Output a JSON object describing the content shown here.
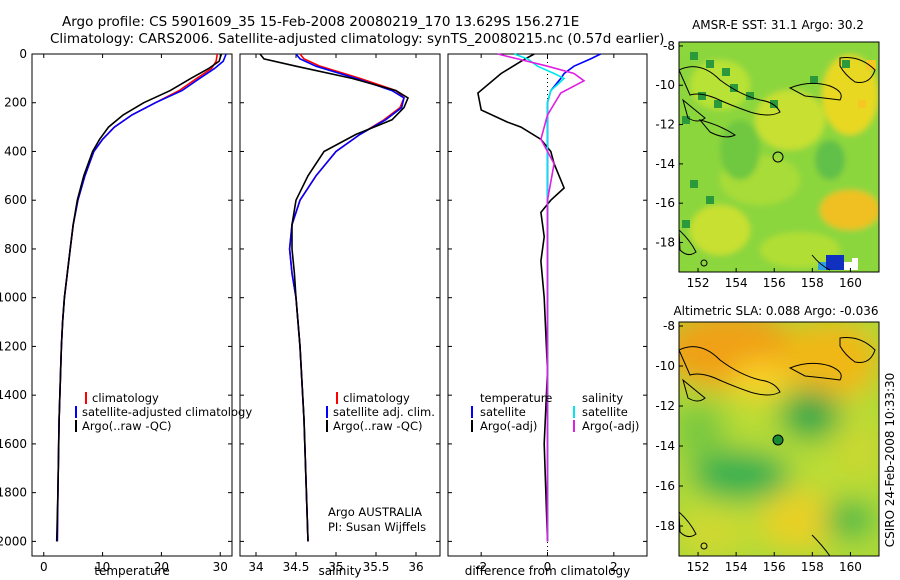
{
  "header": {
    "line1": "Argo profile: CS 5901609_35 15-Feb-2008 20080219_170 13.629S 156.271E",
    "line2": "Climatology: CARS2006. Satellite-adjusted climatology: synTS_20080215.nc (0.57d earlier)"
  },
  "side_label": "CSIRO 24-Feb-2008 10:33:30",
  "colors": {
    "climatology": "#ff0000",
    "satellite": "#0000ff",
    "argo": "#000000",
    "salinity_satellite": "#00e5ee",
    "salinity_argo": "#e020e0"
  },
  "chart_data": [
    {
      "type": "line",
      "id": "temperature",
      "xlabel": "temperature",
      "ylabel": "",
      "xlim": [
        -2,
        32
      ],
      "ylim": [
        2060,
        0
      ],
      "xticks": [
        0,
        10,
        20,
        30
      ],
      "yticks": [
        0,
        200,
        400,
        600,
        800,
        1000,
        1200,
        1400,
        1600,
        1800,
        2000
      ],
      "legend": [
        "climatology",
        "satellite-adjusted climatology",
        "Argo(..raw -QC)"
      ],
      "series": [
        {
          "name": "climatology",
          "color": "#ff0000",
          "x": [
            29.5,
            29.3,
            28.5,
            26,
            23,
            19,
            15,
            12,
            10,
            8.5,
            7,
            5.8,
            5,
            4.5,
            4,
            3.5,
            3.2,
            3,
            2.6,
            2.4,
            2.3
          ],
          "y": [
            0,
            30,
            60,
            100,
            150,
            200,
            250,
            300,
            350,
            400,
            500,
            600,
            700,
            800,
            900,
            1000,
            1100,
            1200,
            1500,
            1800,
            2000
          ]
        },
        {
          "name": "satellite-adjusted climatology",
          "color": "#0000ff",
          "x": [
            31,
            30.5,
            29,
            26.5,
            23.5,
            19,
            15,
            12,
            10,
            8.5,
            7,
            5.8,
            5,
            4.5,
            4,
            3.5,
            3.2,
            3,
            2.6,
            2.4,
            2.3
          ],
          "y": [
            0,
            30,
            60,
            100,
            150,
            200,
            250,
            300,
            350,
            400,
            500,
            600,
            700,
            800,
            900,
            1000,
            1100,
            1200,
            1500,
            1800,
            2000
          ]
        },
        {
          "name": "Argo(..raw -QC)",
          "color": "#000000",
          "x": [
            30.2,
            29.8,
            28,
            25,
            21.5,
            17,
            13.5,
            11,
            9.5,
            8.3,
            6.8,
            5.7,
            5,
            4.5,
            4,
            3.5,
            3.2,
            3,
            2.6,
            2.4,
            2.2
          ],
          "y": [
            0,
            30,
            60,
            100,
            150,
            200,
            250,
            300,
            350,
            400,
            500,
            600,
            700,
            800,
            900,
            1000,
            1100,
            1200,
            1500,
            1800,
            2000
          ]
        }
      ]
    },
    {
      "type": "line",
      "id": "salinity",
      "xlabel": "salinity",
      "xlim": [
        33.8,
        36.3
      ],
      "ylim": [
        2060,
        0
      ],
      "xticks": [
        34,
        34.5,
        35,
        35.5,
        36
      ],
      "legend": [
        "climatology",
        "satellite adj. clim.",
        "Argo(..raw -QC)"
      ],
      "annotation": [
        "Argo AUSTRALIA",
        "PI: Susan Wijffels"
      ],
      "series": [
        {
          "name": "climatology",
          "color": "#ff0000",
          "x": [
            34.55,
            34.6,
            34.8,
            35.3,
            35.75,
            35.85,
            35.8,
            35.6,
            35.3,
            35.0,
            34.75,
            34.55,
            34.45,
            34.42,
            34.45,
            34.5,
            34.55,
            34.6,
            34.63,
            34.65
          ],
          "y": [
            0,
            20,
            50,
            100,
            150,
            180,
            220,
            270,
            330,
            400,
            500,
            600,
            700,
            800,
            900,
            1000,
            1200,
            1500,
            1800,
            2000
          ]
        },
        {
          "name": "satellite adj. clim.",
          "color": "#0000ff",
          "x": [
            34.5,
            34.55,
            34.75,
            35.25,
            35.7,
            35.85,
            35.82,
            35.62,
            35.3,
            35.0,
            34.75,
            34.55,
            34.45,
            34.42,
            34.45,
            34.5,
            34.55,
            34.6,
            34.63,
            34.65
          ],
          "y": [
            0,
            20,
            50,
            100,
            150,
            180,
            220,
            270,
            330,
            400,
            500,
            600,
            700,
            800,
            900,
            1000,
            1200,
            1500,
            1800,
            2000
          ]
        },
        {
          "name": "Argo(..raw -QC)",
          "color": "#000000",
          "x": [
            34.05,
            34.1,
            34.5,
            35.2,
            35.75,
            35.9,
            35.85,
            35.7,
            35.25,
            34.85,
            34.65,
            34.5,
            34.45,
            34.45,
            34.48,
            34.5,
            34.55,
            34.6,
            34.63,
            34.65
          ],
          "y": [
            0,
            20,
            50,
            100,
            150,
            180,
            220,
            270,
            330,
            400,
            500,
            600,
            700,
            800,
            900,
            1000,
            1200,
            1500,
            1800,
            2000
          ]
        }
      ]
    },
    {
      "type": "line",
      "id": "difference",
      "xlabel": "difference from climatology",
      "xlim": [
        -3,
        3
      ],
      "ylim": [
        2060,
        0
      ],
      "xticks": [
        -2,
        0,
        2
      ],
      "legend": {
        "temperature": [
          "temperature",
          "satellite",
          "Argo(-adj)"
        ],
        "salinity": [
          "salinity",
          "satellite",
          "Argo(-adj)"
        ]
      },
      "series": [
        {
          "name": "temperature satellite",
          "color": "#0000ff",
          "x": [
            1.6,
            1.3,
            0.8,
            0.5,
            0.4,
            0.1,
            0,
            0,
            0,
            0,
            0,
            0,
            0,
            0
          ],
          "y": [
            0,
            20,
            50,
            80,
            100,
            150,
            200,
            300,
            500,
            700,
            900,
            1200,
            1600,
            2000
          ]
        },
        {
          "name": "temperature Argo(-adj)",
          "color": "#000000",
          "x": [
            -0.4,
            -0.8,
            -1.4,
            -2.1,
            -2.0,
            -1.2,
            -0.8,
            -0.2,
            0.1,
            0.2,
            0.5,
            0.1,
            -0.2,
            -0.1,
            -0.2,
            -0.1,
            0,
            -0.1,
            0
          ],
          "y": [
            0,
            30,
            80,
            160,
            230,
            280,
            300,
            350,
            400,
            450,
            550,
            600,
            650,
            750,
            850,
            1000,
            1300,
            1600,
            2000
          ]
        },
        {
          "name": "salinity satellite",
          "color": "#00e5ee",
          "x": [
            -1.0,
            -0.6,
            -0.3,
            0.2,
            0.5,
            0.1,
            0,
            0,
            0,
            0,
            0,
            0,
            0
          ],
          "y": [
            0,
            20,
            50,
            80,
            100,
            150,
            200,
            300,
            500,
            700,
            1000,
            1500,
            2000
          ]
        },
        {
          "name": "salinity Argo(-adj)",
          "color": "#e020e0",
          "x": [
            -1.5,
            -0.9,
            0,
            0.8,
            1.1,
            0.4,
            0,
            -0.2,
            0.2,
            0,
            0,
            0,
            0
          ],
          "y": [
            0,
            20,
            50,
            80,
            110,
            160,
            250,
            350,
            450,
            600,
            800,
            1200,
            2000
          ]
        }
      ]
    },
    {
      "type": "heatmap",
      "id": "sst-map",
      "title": "AMSR-E SST: 31.1 Argo: 30.2",
      "xlim": [
        151,
        161.5
      ],
      "ylim": [
        -19.5,
        -7.8
      ],
      "xticks": [
        152,
        154,
        156,
        158,
        160
      ],
      "yticks": [
        -8,
        -10,
        -12,
        -14,
        -16,
        -18
      ],
      "argo_marker": {
        "lon": 156.271,
        "lat": -13.629
      }
    },
    {
      "type": "heatmap",
      "id": "sla-map",
      "title": "Altimetric SLA: 0.088 Argo: -0.036",
      "xlim": [
        151,
        161.5
      ],
      "ylim": [
        -19.5,
        -7.8
      ],
      "xticks": [
        152,
        154,
        156,
        158,
        160
      ],
      "yticks": [
        -8,
        -10,
        -12,
        -14,
        -16,
        -18
      ],
      "argo_marker": {
        "lon": 156.271,
        "lat": -13.629
      }
    }
  ]
}
